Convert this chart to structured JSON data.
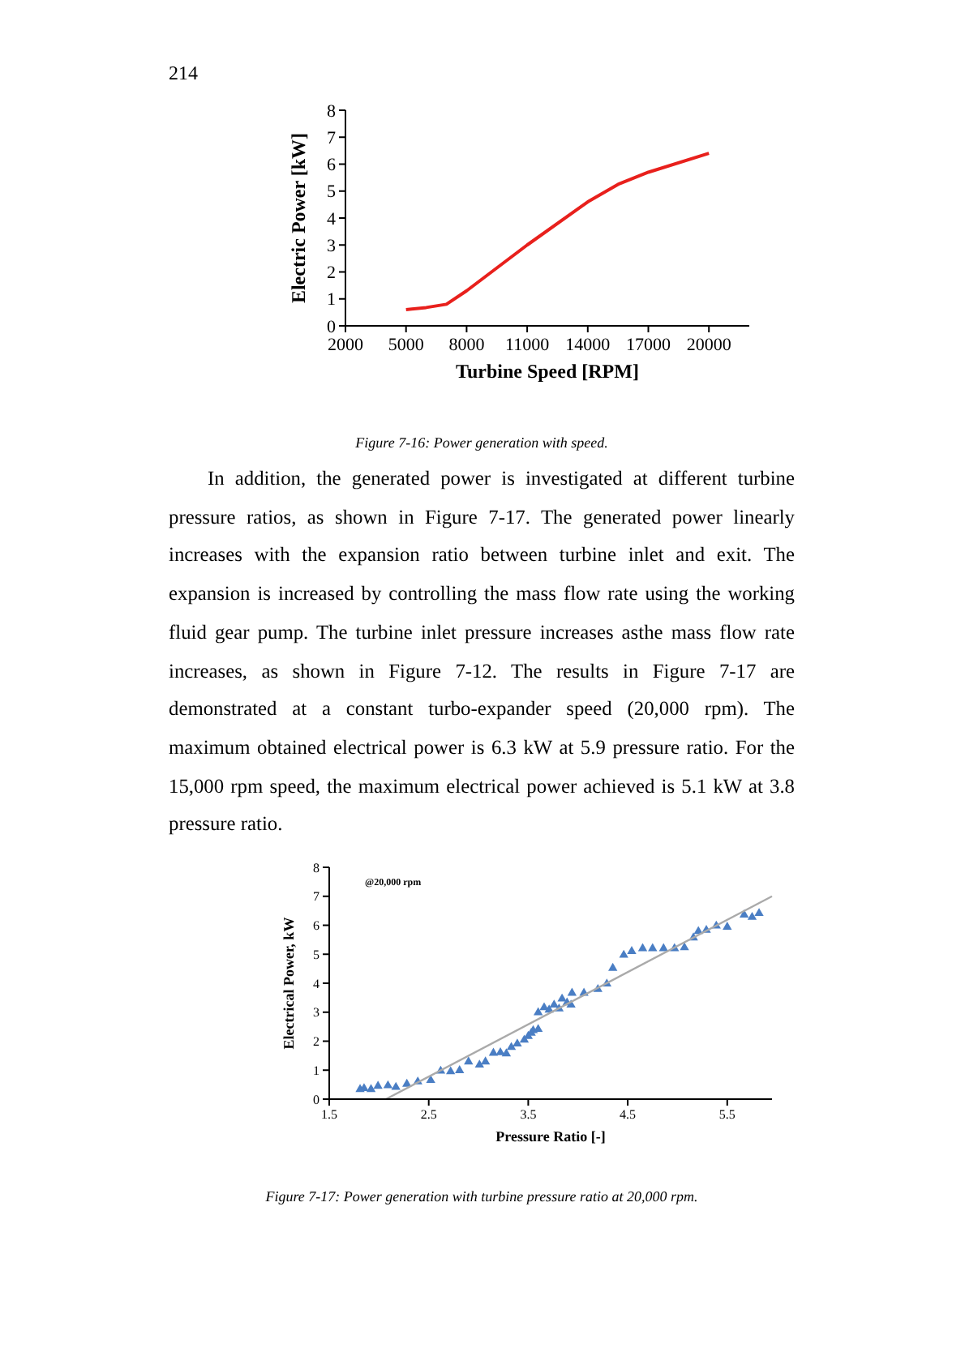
{
  "chart_data": [
    {
      "type": "line",
      "xlabel": "Turbine Speed [RPM]",
      "ylabel": "Electric Power [kW]",
      "annotations": [
        "214",
        "Figure 7-16: Power generation with speed.",
        "In addition, the generated power is investigated at different turbine pressure ratios, as shown in Figure 7-17. The generated power linearly increases with the expansion ratio between turbine inlet and exit. The expansion is increased by controlling the mass flow rate using the working fluid gear pump. The turbine inlet pressure increases asthe mass flow rate increases, as shown in Figure 7-12. The results in Figure 7-17 are demonstrated at a constant turbo-expander speed (20,000 rpm). The maximum obtained electrical power is 6.3 kW at 5.9 pressure ratio. For the 15,000 rpm speed, the maximum electrical power achieved is 5.1 kW at 3.8 pressure ratio."
      ],
      "x": [
        5000,
        6000,
        7000,
        8000,
        11000,
        14000,
        15500,
        17000,
        20000
      ],
      "series": [
        {
          "color": "#e8201c",
          "values": [
            0.6,
            0.68,
            0.8,
            1.3,
            3.0,
            4.6,
            5.25,
            5.7,
            6.4
          ]
        }
      ],
      "xlim": [
        2000,
        22000
      ],
      "xticks": [
        2000,
        5000,
        8000,
        11000,
        14000,
        17000,
        20000
      ],
      "ylim": [
        0,
        8
      ],
      "yticks": [
        0,
        1,
        2,
        3,
        4,
        5,
        6,
        7,
        8
      ],
      "grid": false
    },
    {
      "type": "scatter",
      "xlabel": "Pressure Ratio [-]",
      "ylabel": "Electrical Power, kW",
      "annotations": [
        "@20,000 rpm",
        "Figure 7-17: Power generation with turbine pressure ratio at 20,000 rpm."
      ],
      "series": [
        {
          "color": "#4a7ec4",
          "marker": "triangle",
          "x": [
            1.81,
            1.85,
            1.92,
            1.99,
            2.09,
            2.17,
            2.28,
            2.39,
            2.52,
            2.62,
            2.72,
            2.81,
            2.9,
            3.01,
            3.07,
            3.15,
            3.22,
            3.28,
            3.33,
            3.39,
            3.46,
            3.5,
            3.53,
            3.55,
            3.6,
            3.6,
            3.66,
            3.71,
            3.76,
            3.81,
            3.84,
            3.89,
            3.93,
            3.94,
            4.06,
            4.2,
            4.29,
            4.35,
            4.46,
            4.54,
            4.65,
            4.75,
            4.86,
            4.97,
            5.07,
            5.16,
            5.21,
            5.29,
            5.39,
            5.5,
            5.67,
            5.75,
            5.82
          ],
          "values": [
            0.34,
            0.37,
            0.34,
            0.45,
            0.47,
            0.41,
            0.52,
            0.6,
            0.65,
            0.97,
            0.95,
            0.99,
            1.29,
            1.18,
            1.29,
            1.59,
            1.61,
            1.57,
            1.79,
            1.91,
            2.04,
            2.17,
            2.28,
            2.37,
            2.41,
            2.99,
            3.16,
            3.08,
            3.25,
            3.12,
            3.46,
            3.33,
            3.25,
            3.66,
            3.66,
            3.79,
            3.98,
            4.52,
            4.97,
            5.1,
            5.2,
            5.2,
            5.2,
            5.2,
            5.23,
            5.57,
            5.79,
            5.83,
            5.98,
            5.94,
            6.36,
            6.28,
            6.41
          ]
        },
        {
          "type": "line",
          "color": "#aaaaaa",
          "x": [
            2.07,
            5.95
          ],
          "values": [
            0,
            7
          ]
        }
      ],
      "xlim": [
        1.5,
        5.95
      ],
      "xticks": [
        1.5,
        2.5,
        3.5,
        4.5,
        5.5
      ],
      "ylim": [
        0,
        8
      ],
      "yticks": [
        0,
        1,
        2,
        3,
        4,
        5,
        6,
        7,
        8
      ],
      "grid": false
    }
  ]
}
